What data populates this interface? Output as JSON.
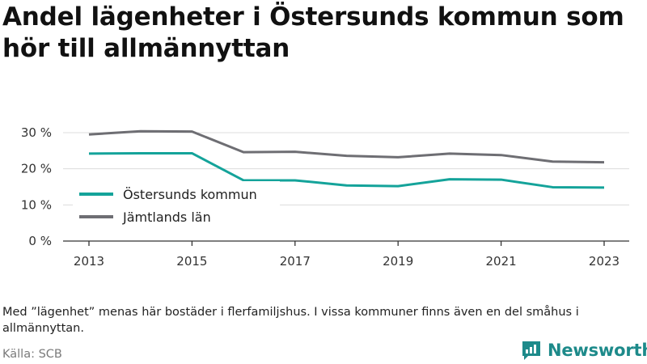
{
  "title": "Andel lägenheter i Östersunds kommun som hör till allmännyttan",
  "note": "Med ”lägenhet” menas här bostäder i flerfamiljshus. I vissa kommuner finns även en del småhus i allmännyttan.",
  "source": "Källa: SCB",
  "brand": {
    "name": "Newsworthy",
    "icon": "bar-chart-logo-icon",
    "color": "#1d8a8a"
  },
  "chart_data": {
    "type": "line",
    "title": "Andel lägenheter i Östersunds kommun som hör till allmännyttan",
    "xlabel": "",
    "ylabel": "",
    "x": [
      2013,
      2014,
      2015,
      2016,
      2017,
      2018,
      2019,
      2020,
      2021,
      2022,
      2023
    ],
    "x_ticks": [
      "2013",
      "2015",
      "2017",
      "2019",
      "2021",
      "2023"
    ],
    "y_ticks": [
      "0 %",
      "10 %",
      "20 %",
      "30 %"
    ],
    "ylim": [
      0,
      30
    ],
    "grid": "horizontal",
    "legend_position": "left",
    "series": [
      {
        "name": "Östersunds kommun",
        "color": "#14a39a",
        "values": [
          24.2,
          24.3,
          24.3,
          16.8,
          16.8,
          15.4,
          15.2,
          17.1,
          17.0,
          14.9,
          14.8
        ]
      },
      {
        "name": "Jämtlands län",
        "color": "#6e6e73",
        "values": [
          29.5,
          30.4,
          30.3,
          24.6,
          24.7,
          23.6,
          23.2,
          24.2,
          23.8,
          22.0,
          21.8
        ]
      }
    ]
  }
}
